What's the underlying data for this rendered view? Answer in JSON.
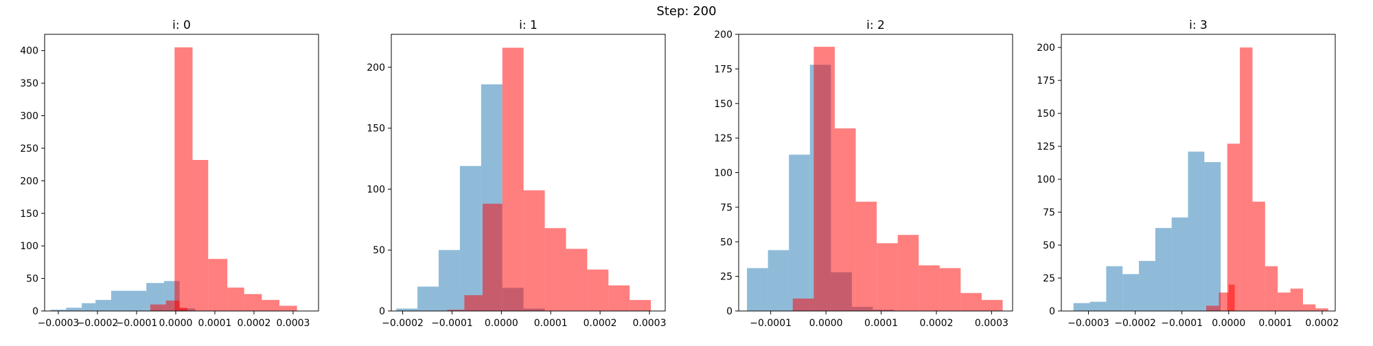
{
  "figure": {
    "suptitle": "Step: 200"
  },
  "colors": {
    "blue": "#1f77b4",
    "red": "#ff0000",
    "alpha": 0.5
  },
  "chart_data": [
    {
      "type": "bar",
      "title": "i: 0",
      "xlim": [
        -0.000335,
        0.000365
      ],
      "ylim": [
        0,
        425
      ],
      "xticks": [
        -0.0003,
        -0.0002,
        -0.0001,
        0.0,
        0.0001,
        0.0002,
        0.0003
      ],
      "xtick_labels": [
        "−0.0003",
        "−0.0002",
        "−0.0001",
        "0.0000",
        "0.0001",
        "0.0002",
        "0.0003"
      ],
      "yticks": [
        0,
        50,
        100,
        150,
        200,
        250,
        300,
        350,
        400
      ],
      "series": [
        {
          "color": "blue",
          "bins": [
            [
              -0.00032,
              -0.00028,
              2
            ],
            [
              -0.00028,
              -0.00024,
              5
            ],
            [
              -0.00024,
              -0.000205,
              12
            ],
            [
              -0.000205,
              -0.000165,
              17
            ],
            [
              -0.000165,
              -0.00012,
              31
            ],
            [
              -0.00012,
              -7.5e-05,
              31
            ],
            [
              -7.5e-05,
              -3e-05,
              43
            ],
            [
              -3e-05,
              1e-05,
              46
            ],
            [
              1e-05,
              5e-05,
              4
            ]
          ]
        },
        {
          "color": "red",
          "bins": [
            [
              -6.5e-05,
              -2.5e-05,
              10
            ],
            [
              -2.5e-05,
              1e-05,
              16
            ],
            [
              1e-05,
              3e-05,
              5
            ],
            [
              -3e-06,
              4.3e-05,
              405
            ],
            [
              4.3e-05,
              8.3e-05,
              232
            ],
            [
              8.3e-05,
              0.000132,
              80
            ],
            [
              0.000132,
              0.000175,
              36
            ],
            [
              0.000175,
              0.00022,
              26
            ],
            [
              0.00022,
              0.000265,
              17
            ],
            [
              0.000265,
              0.00031,
              8
            ]
          ]
        }
      ]
    },
    {
      "type": "bar",
      "title": "i: 1",
      "xlim": [
        -0.000223,
        0.000332
      ],
      "ylim": [
        0,
        227
      ],
      "xticks": [
        -0.0002,
        -0.0001,
        0.0,
        0.0001,
        0.0002,
        0.0003
      ],
      "xtick_labels": [
        "−0.0002",
        "−0.0001",
        "0.0000",
        "0.0001",
        "0.0002",
        "0.0003"
      ],
      "yticks": [
        0,
        50,
        100,
        150,
        200
      ],
      "series": [
        {
          "color": "blue",
          "bins": [
            [
              -0.000213,
              -0.00017,
              2
            ],
            [
              -0.00017,
              -0.000127,
              20
            ],
            [
              -0.000127,
              -8.4e-05,
              50
            ],
            [
              -8.4e-05,
              -4.1e-05,
              119
            ],
            [
              -4.1e-05,
              2e-06,
              186
            ],
            [
              2e-06,
              4.5e-05,
              19
            ],
            [
              4.5e-05,
              8.8e-05,
              2
            ]
          ]
        },
        {
          "color": "red",
          "bins": [
            [
              -0.00011,
              -7.5e-05,
              1
            ],
            [
              -7.5e-05,
              -3.8e-05,
              13
            ],
            [
              -3.8e-05,
              2e-06,
              88
            ],
            [
              2e-06,
              4.5e-05,
              216
            ],
            [
              4.5e-05,
              8.8e-05,
              99
            ],
            [
              8.8e-05,
              0.000131,
              68
            ],
            [
              0.000131,
              0.000174,
              51
            ],
            [
              0.000174,
              0.000217,
              34
            ],
            [
              0.000217,
              0.00026,
              21
            ],
            [
              0.00026,
              0.000303,
              9
            ]
          ]
        }
      ]
    },
    {
      "type": "bar",
      "title": "i: 2",
      "xlim": [
        -0.000158,
        0.000338
      ],
      "ylim": [
        0,
        200
      ],
      "xticks": [
        -0.0001,
        0.0,
        0.0001,
        0.0002,
        0.0003
      ],
      "xtick_labels": [
        "−0.0001",
        "0.0000",
        "0.0001",
        "0.0002",
        "0.0003"
      ],
      "yticks": [
        0,
        25,
        50,
        75,
        100,
        125,
        150,
        175,
        200
      ],
      "series": [
        {
          "color": "blue",
          "bins": [
            [
              -0.000143,
              -0.000105,
              31
            ],
            [
              -0.000105,
              -6.7e-05,
              44
            ],
            [
              -6.7e-05,
              -2.9e-05,
              113
            ],
            [
              -2.9e-05,
              9e-06,
              178
            ],
            [
              9e-06,
              4.7e-05,
              28
            ],
            [
              4.7e-05,
              8.5e-05,
              3
            ],
            [
              8.5e-05,
              0.000123,
              1
            ]
          ]
        },
        {
          "color": "red",
          "bins": [
            [
              -6e-05,
              -2.2e-05,
              9
            ],
            [
              -2.2e-05,
              1.6e-05,
              191
            ],
            [
              1.6e-05,
              5.4e-05,
              132
            ],
            [
              5.4e-05,
              9.2e-05,
              79
            ],
            [
              9.2e-05,
              0.00013,
              49
            ],
            [
              0.00013,
              0.000168,
              55
            ],
            [
              0.000168,
              0.000206,
              33
            ],
            [
              0.000206,
              0.000244,
              31
            ],
            [
              0.000244,
              0.000282,
              13
            ],
            [
              0.000282,
              0.00032,
              8
            ]
          ]
        }
      ]
    },
    {
      "type": "bar",
      "title": "i: 3",
      "xlim": [
        -0.000358,
        0.000228
      ],
      "ylim": [
        0,
        210
      ],
      "xticks": [
        -0.0003,
        -0.0002,
        -0.0001,
        0.0,
        0.0001,
        0.0002
      ],
      "xtick_labels": [
        "−0.0003",
        "−0.0002",
        "−0.0001",
        "0.0000",
        "0.0001",
        "0.0002"
      ],
      "yticks": [
        0,
        25,
        50,
        75,
        100,
        125,
        150,
        175,
        200
      ],
      "series": [
        {
          "color": "blue",
          "bins": [
            [
              -0.000332,
              -0.000297,
              6
            ],
            [
              -0.000297,
              -0.000262,
              7
            ],
            [
              -0.000262,
              -0.000227,
              34
            ],
            [
              -0.000227,
              -0.000192,
              28
            ],
            [
              -0.000192,
              -0.000157,
              38
            ],
            [
              -0.000157,
              -0.000122,
              63
            ],
            [
              -0.000122,
              -8.7e-05,
              71
            ],
            [
              -8.7e-05,
              -5.2e-05,
              121
            ],
            [
              -5.2e-05,
              -1.7e-05,
              113
            ]
          ]
        },
        {
          "color": "red",
          "bins": [
            [
              -4.8e-05,
              -2.1e-05,
              4
            ],
            [
              -2.1e-05,
              0.0,
              14
            ],
            [
              0.0,
              1.3e-05,
              20
            ],
            [
              -3e-06,
              2.4e-05,
              127
            ],
            [
              2.4e-05,
              5.1e-05,
              200
            ],
            [
              5.1e-05,
              7.8e-05,
              83
            ],
            [
              7.8e-05,
              0.000105,
              34
            ],
            [
              0.000105,
              0.000132,
              14
            ],
            [
              0.000132,
              0.000159,
              17
            ],
            [
              0.000159,
              0.000186,
              5
            ],
            [
              0.000186,
              0.000213,
              2
            ]
          ]
        }
      ]
    }
  ]
}
